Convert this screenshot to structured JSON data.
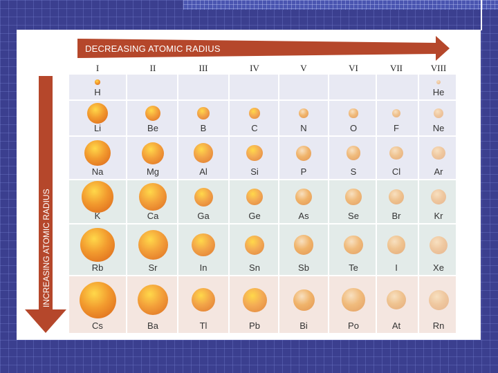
{
  "title": "DECREASING ATOMIC RADIUS",
  "side_label": "INCREASING ATOMIC RADIUS",
  "groups": [
    "I",
    "II",
    "III",
    "IV",
    "V",
    "VI",
    "VII",
    "VIII"
  ],
  "colors": {
    "arrow": "#b5472b",
    "row_blue": "#e8e9f3",
    "row_green": "#e3ebe9",
    "row_pink": "#f4e6e0",
    "background": "#3b3f8f"
  },
  "rows": [
    {
      "band": "blue",
      "elements": [
        {
          "symbol": "H",
          "radius_pm": 37
        },
        {
          "symbol": "",
          "radius_pm": 0
        },
        {
          "symbol": "",
          "radius_pm": 0
        },
        {
          "symbol": "",
          "radius_pm": 0
        },
        {
          "symbol": "",
          "radius_pm": 0
        },
        {
          "symbol": "",
          "radius_pm": 0
        },
        {
          "symbol": "",
          "radius_pm": 0
        },
        {
          "symbol": "He",
          "radius_pm": 32
        }
      ]
    },
    {
      "band": "blue",
      "elements": [
        {
          "symbol": "Li",
          "radius_pm": 152
        },
        {
          "symbol": "Be",
          "radius_pm": 112
        },
        {
          "symbol": "B",
          "radius_pm": 88
        },
        {
          "symbol": "C",
          "radius_pm": 77
        },
        {
          "symbol": "N",
          "radius_pm": 70
        },
        {
          "symbol": "O",
          "radius_pm": 66
        },
        {
          "symbol": "F",
          "radius_pm": 64
        },
        {
          "symbol": "Ne",
          "radius_pm": 69
        }
      ]
    },
    {
      "band": "blue",
      "elements": [
        {
          "symbol": "Na",
          "radius_pm": 186
        },
        {
          "symbol": "Mg",
          "radius_pm": 160
        },
        {
          "symbol": "Al",
          "radius_pm": 143
        },
        {
          "symbol": "Si",
          "radius_pm": 117
        },
        {
          "symbol": "P",
          "radius_pm": 110
        },
        {
          "symbol": "S",
          "radius_pm": 104
        },
        {
          "symbol": "Cl",
          "radius_pm": 99
        },
        {
          "symbol": "Ar",
          "radius_pm": 97
        }
      ]
    },
    {
      "band": "green",
      "elements": [
        {
          "symbol": "K",
          "radius_pm": 227
        },
        {
          "symbol": "Ca",
          "radius_pm": 197
        },
        {
          "symbol": "Ga",
          "radius_pm": 135
        },
        {
          "symbol": "Ge",
          "radius_pm": 122
        },
        {
          "symbol": "As",
          "radius_pm": 121
        },
        {
          "symbol": "Se",
          "radius_pm": 117
        },
        {
          "symbol": "Br",
          "radius_pm": 114
        },
        {
          "symbol": "Kr",
          "radius_pm": 110
        }
      ]
    },
    {
      "band": "green",
      "elements": [
        {
          "symbol": "Rb",
          "radius_pm": 248
        },
        {
          "symbol": "Sr",
          "radius_pm": 215
        },
        {
          "symbol": "In",
          "radius_pm": 167
        },
        {
          "symbol": "Sn",
          "radius_pm": 140
        },
        {
          "symbol": "Sb",
          "radius_pm": 141
        },
        {
          "symbol": "Te",
          "radius_pm": 137
        },
        {
          "symbol": "I",
          "radius_pm": 133
        },
        {
          "symbol": "Xe",
          "radius_pm": 130
        }
      ]
    },
    {
      "band": "pink",
      "elements": [
        {
          "symbol": "Cs",
          "radius_pm": 265
        },
        {
          "symbol": "Ba",
          "radius_pm": 222
        },
        {
          "symbol": "Tl",
          "radius_pm": 170
        },
        {
          "symbol": "Pb",
          "radius_pm": 175
        },
        {
          "symbol": "Bi",
          "radius_pm": 155
        },
        {
          "symbol": "Po",
          "radius_pm": 167
        },
        {
          "symbol": "At",
          "radius_pm": 140
        },
        {
          "symbol": "Rn",
          "radius_pm": 145
        }
      ]
    }
  ]
}
